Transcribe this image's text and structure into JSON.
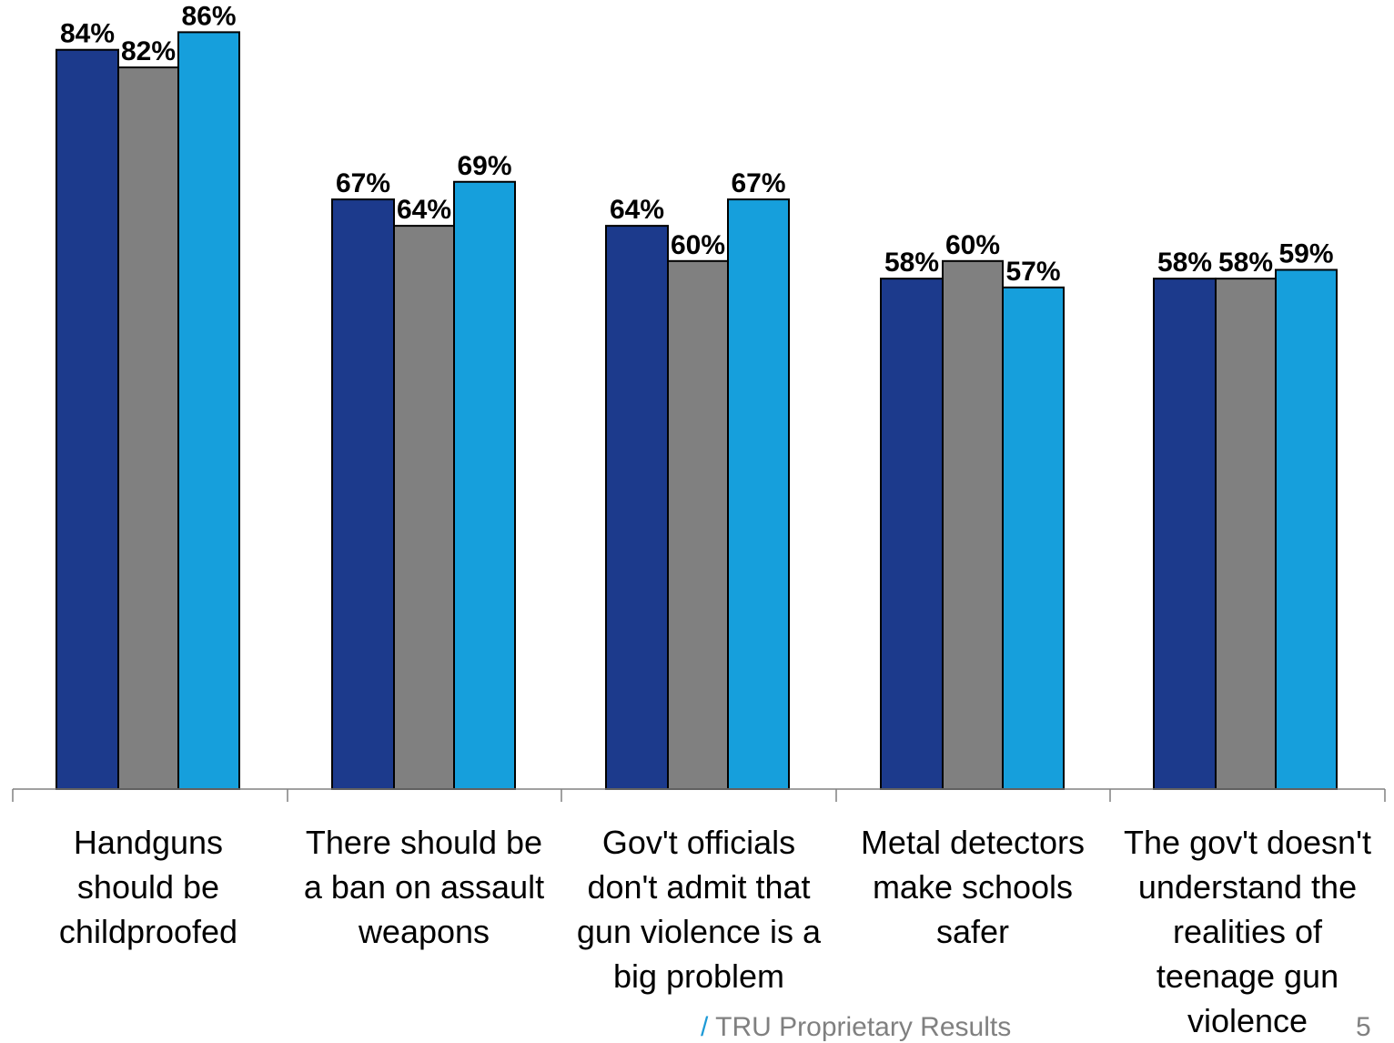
{
  "chart_data": {
    "type": "bar",
    "categories": [
      [
        "Handguns",
        "should be",
        "childproofed"
      ],
      [
        "There should be",
        "a ban on assault",
        "weapons"
      ],
      [
        "Gov't officials",
        "don't admit that",
        "gun violence is a",
        "big problem"
      ],
      [
        "Metal detectors",
        "make schools",
        "safer"
      ],
      [
        "The gov't doesn't",
        "understand the",
        "realities of",
        "teenage gun",
        "violence"
      ]
    ],
    "series": [
      {
        "color": "#1c3a8c",
        "values": [
          84,
          67,
          64,
          58,
          58
        ]
      },
      {
        "color": "#808080",
        "values": [
          82,
          64,
          60,
          60,
          58
        ]
      },
      {
        "color": "#169fdc",
        "values": [
          86,
          69,
          67,
          57,
          59
        ]
      }
    ],
    "value_labels": [
      [
        "84%",
        "67%",
        "64%",
        "58%",
        "58%"
      ],
      [
        "82%",
        "64%",
        "60%",
        "60%",
        "58%"
      ],
      [
        "86%",
        "69%",
        "67%",
        "57%",
        "59%"
      ]
    ],
    "ylim": [
      0,
      100
    ],
    "grid": false,
    "legend": "none"
  },
  "footer": {
    "slash": "/",
    "text": "TRU Proprietary Results",
    "page_number": "5"
  }
}
